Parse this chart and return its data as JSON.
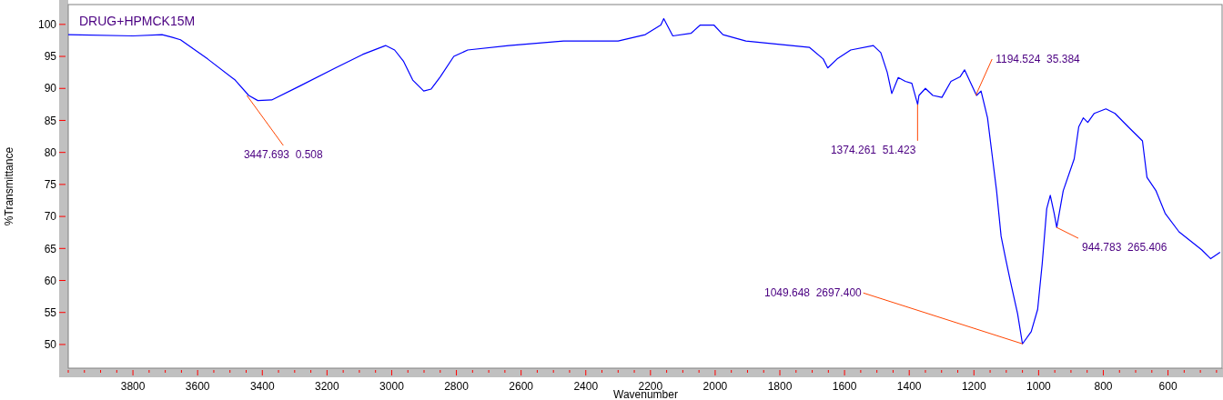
{
  "chart_data": {
    "type": "line",
    "title": "DRUG+HPMCK15M",
    "xlabel": "Wavenumber",
    "ylabel": "%Transmittance",
    "xlim": [
      4000,
      430
    ],
    "ylim": [
      46.3,
      103.1
    ],
    "xticks": [
      {
        "value": 4000,
        "label": null
      },
      {
        "value": 3950,
        "label": null
      },
      {
        "value": 3900,
        "label": null
      },
      {
        "value": 3850,
        "label": null
      },
      3800,
      {
        "value": 3750,
        "label": null
      },
      {
        "value": 3700,
        "label": null
      },
      {
        "value": 3650,
        "label": null
      },
      3600,
      {
        "value": 3550,
        "label": null
      },
      {
        "value": 3500,
        "label": null
      },
      {
        "value": 3450,
        "label": null
      },
      3400,
      {
        "value": 3350,
        "label": null
      },
      {
        "value": 3300,
        "label": null
      },
      {
        "value": 3250,
        "label": null
      },
      3200,
      {
        "value": 3150,
        "label": null
      },
      {
        "value": 3100,
        "label": null
      },
      {
        "value": 3050,
        "label": null
      },
      3000,
      {
        "value": 2950,
        "label": null
      },
      {
        "value": 2900,
        "label": null
      },
      {
        "value": 2850,
        "label": null
      },
      2800,
      {
        "value": 2750,
        "label": null
      },
      {
        "value": 2700,
        "label": null
      },
      {
        "value": 2650,
        "label": null
      },
      2600,
      {
        "value": 2550,
        "label": null
      },
      {
        "value": 2500,
        "label": null
      },
      {
        "value": 2450,
        "label": null
      },
      2400,
      {
        "value": 2350,
        "label": null
      },
      {
        "value": 2300,
        "label": null
      },
      {
        "value": 2250,
        "label": null
      },
      2200,
      {
        "value": 2150,
        "label": null
      },
      {
        "value": 2100,
        "label": null
      },
      {
        "value": 2050,
        "label": null
      },
      2000,
      {
        "value": 1950,
        "label": null
      },
      {
        "value": 1900,
        "label": null
      },
      {
        "value": 1850,
        "label": null
      },
      1800,
      {
        "value": 1750,
        "label": null
      },
      {
        "value": 1700,
        "label": null
      },
      {
        "value": 1650,
        "label": null
      },
      1600,
      {
        "value": 1550,
        "label": null
      },
      {
        "value": 1500,
        "label": null
      },
      {
        "value": 1450,
        "label": null
      },
      1400,
      {
        "value": 1350,
        "label": null
      },
      {
        "value": 1300,
        "label": null
      },
      {
        "value": 1250,
        "label": null
      },
      1200,
      {
        "value": 1150,
        "label": null
      },
      {
        "value": 1100,
        "label": null
      },
      {
        "value": 1050,
        "label": null
      },
      1000,
      {
        "value": 950,
        "label": null
      },
      {
        "value": 900,
        "label": null
      },
      {
        "value": 850,
        "label": null
      },
      800,
      {
        "value": 750,
        "label": null
      },
      {
        "value": 700,
        "label": null
      },
      {
        "value": 650,
        "label": null
      },
      600,
      {
        "value": 550,
        "label": null
      },
      {
        "value": 500,
        "label": null
      },
      {
        "value": 450,
        "label": null
      }
    ],
    "yticks": [
      50,
      55,
      60,
      65,
      70,
      75,
      80,
      85,
      90,
      95,
      100
    ],
    "grid": false,
    "marker": "none",
    "line_style": "solid",
    "series": [
      {
        "color": "#0000ff",
        "x": [
          4000,
          3800,
          3710,
          3680,
          3653,
          3569,
          3484,
          3442,
          3414,
          3371,
          3287,
          3174,
          3090,
          3019,
          2991,
          2963,
          2935,
          2901,
          2878,
          2850,
          2808,
          2765,
          2638,
          2469,
          2300,
          2216,
          2168,
          2159,
          2131,
          2075,
          2046,
          2004,
          1976,
          1905,
          1708,
          1666,
          1652,
          1623,
          1581,
          1511,
          1488,
          1468,
          1454,
          1434,
          1412,
          1392,
          1374,
          1370,
          1350,
          1327,
          1299,
          1271,
          1243,
          1229,
          1192,
          1178,
          1158,
          1144,
          1130,
          1116,
          1102,
          1087,
          1065,
          1050,
          1023,
          1003,
          989,
          975,
          964,
          952,
          944,
          924,
          890,
          876,
          862,
          848,
          828,
          792,
          764,
          721,
          679,
          665,
          637,
          609,
          566,
          496,
          468,
          439
        ],
        "values": [
          98.4,
          98.2,
          98.4,
          98.0,
          97.6,
          94.6,
          91.3,
          88.9,
          88.1,
          88.2,
          90.3,
          93.2,
          95.3,
          96.7,
          96.0,
          94.2,
          91.3,
          89.6,
          89.9,
          91.8,
          95.0,
          96.0,
          96.7,
          97.4,
          97.4,
          98.4,
          99.9,
          100.9,
          98.2,
          98.6,
          99.9,
          99.9,
          98.4,
          97.4,
          96.4,
          94.6,
          93.2,
          94.6,
          96.0,
          96.7,
          95.6,
          92.5,
          89.2,
          91.7,
          91.1,
          90.8,
          87.5,
          88.9,
          90.0,
          88.9,
          88.6,
          91.1,
          91.8,
          92.9,
          88.9,
          89.6,
          85.4,
          79.7,
          74.0,
          66.9,
          63.4,
          59.8,
          54.8,
          50.1,
          52.0,
          55.5,
          62.6,
          71.2,
          73.3,
          70.5,
          68.3,
          74.0,
          79.0,
          84.0,
          85.4,
          84.7,
          86.1,
          86.8,
          86.1,
          83.9,
          81.8,
          76.1,
          74.0,
          70.5,
          67.6,
          64.8,
          63.4,
          64.4
        ]
      }
    ],
    "annotations": [
      {
        "text": "3447.693  0.508",
        "x": 3447.693,
        "y": 88.9
      },
      {
        "text": "1374.261  51.423",
        "x": 1374.261,
        "y": 87.5
      },
      {
        "text": "1194.524  35.384",
        "x": 1194.524,
        "y": 88.9
      },
      {
        "text": "944.783  265.406",
        "x": 944.783,
        "y": 68.3
      },
      {
        "text": "1049.648  2697.400",
        "x": 1049.648,
        "y": 50.1
      }
    ]
  }
}
